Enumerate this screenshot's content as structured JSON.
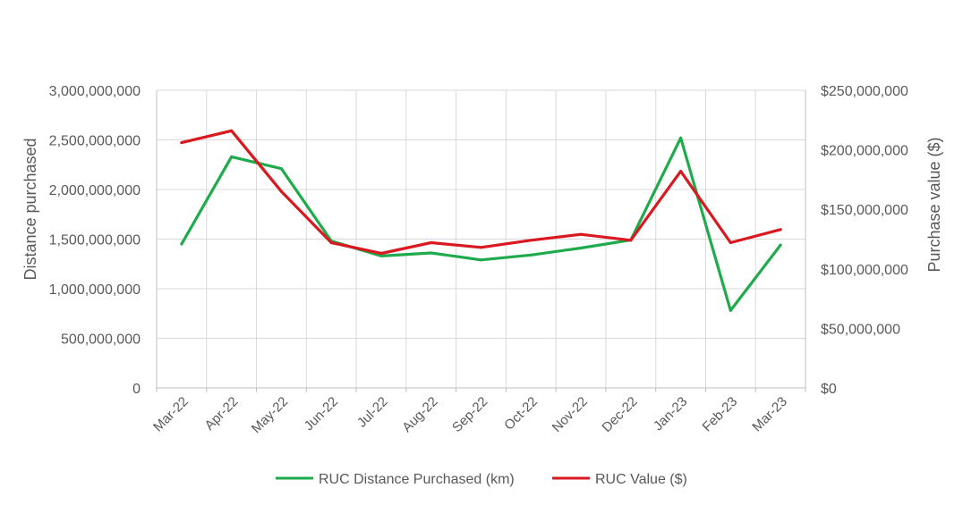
{
  "chart_data": {
    "type": "line",
    "categories": [
      "Mar-22",
      "Apr-22",
      "May-22",
      "Jun-22",
      "Jul-22",
      "Aug-22",
      "Sep-22",
      "Oct-22",
      "Nov-22",
      "Dec-22",
      "Jan-23",
      "Feb-23",
      "Mar-23"
    ],
    "series": [
      {
        "name": "RUC Distance Purchased (km)",
        "axis": "left",
        "color": "#1faa4b",
        "values": [
          1450000000,
          2330000000,
          2210000000,
          1480000000,
          1330000000,
          1360000000,
          1290000000,
          1340000000,
          1410000000,
          1490000000,
          2520000000,
          780000000,
          1440000000
        ]
      },
      {
        "name": "RUC Value ($)",
        "axis": "right",
        "color": "#d9181f",
        "values": [
          206000000,
          216000000,
          165000000,
          122000000,
          113000000,
          122000000,
          118000000,
          124000000,
          129000000,
          124000000,
          182000000,
          122000000,
          133000000
        ]
      }
    ],
    "ylabel": "Distance purchased",
    "y2label": "Purchase value ($)",
    "ylim": [
      0,
      3000000000
    ],
    "y2lim": [
      0,
      250000000
    ],
    "yticks": [
      "0",
      "500,000,000",
      "1,000,000,000",
      "1,500,000,000",
      "2,000,000,000",
      "2,500,000,000",
      "3,000,000,000"
    ],
    "y2ticks": [
      "$0",
      "$50,000,000",
      "$100,000,000",
      "$150,000,000",
      "$200,000,000",
      "$250,000,000"
    ],
    "grid": true,
    "legend_position": "bottom"
  }
}
